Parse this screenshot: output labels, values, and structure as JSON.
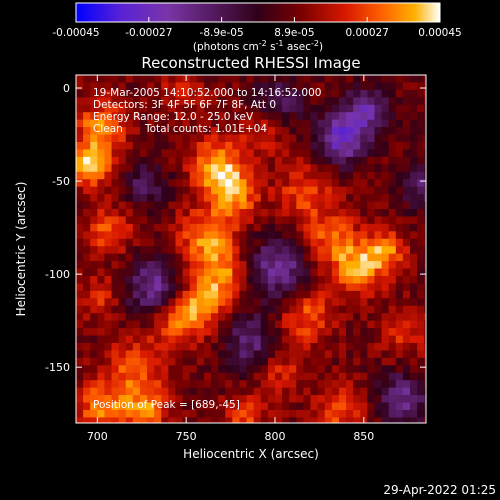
{
  "chart_data": {
    "type": "heatmap",
    "title": "Reconstructed RHESSI Image",
    "xlabel": "Heliocentric X (arcsec)",
    "ylabel": "Heliocentric Y (arcsec)",
    "xlim": [
      688,
      885
    ],
    "ylim": [
      -180,
      7
    ],
    "x_ticks": [
      700,
      750,
      800,
      850
    ],
    "y_ticks": [
      0,
      -50,
      -100,
      -150
    ],
    "colorbar": {
      "label_parts": [
        "(photons cm",
        "-2",
        " s",
        "-1",
        " asec",
        "-2",
        ")"
      ],
      "range": [
        -0.00045,
        0.00045
      ],
      "ticks": [
        "-0.00045",
        "-0.00027",
        "-8.9e-05",
        "8.9e-05",
        "0.00027",
        "0.00045"
      ],
      "colors": [
        "#0000ff",
        "#5a22d6",
        "#7a35a8",
        "#300018",
        "#7a0000",
        "#d81800",
        "#ff6000",
        "#ffb000",
        "#ffffff"
      ]
    },
    "annotations": {
      "time": "19-Mar-2005 14:10:52.000 to 14:16:52.000",
      "detectors": "Detectors: 3F 4F 5F 6F 7F 8F, Att 0",
      "energy": "Energy Range: 12.0 - 25.0 keV",
      "clean": "Clean",
      "counts": "Total counts: 1.01E+04",
      "peak": "Position of Peak = [689,-45]"
    },
    "peak": {
      "x": 689,
      "y": -45
    },
    "grid": false,
    "footer_date": "29-Apr-2022 01:25"
  }
}
